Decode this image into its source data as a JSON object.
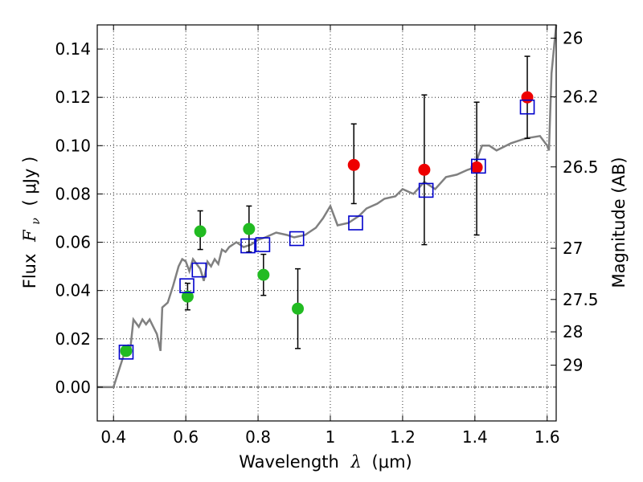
{
  "chart_data": {
    "type": "scatter",
    "xlabel": {
      "prefix": "Wavelength",
      "var": "λ",
      "unit": "(μm)"
    },
    "ylabel": {
      "prefix": "Flux",
      "var": "F",
      "sub": "ν",
      "unit": "( μJy )"
    },
    "y2label": "Magnitude (AB)",
    "xlim": [
      0.355,
      1.625
    ],
    "ylim": [
      -0.014,
      0.15
    ],
    "grid": true,
    "x_ticks": [
      {
        "value": 0.4,
        "label": "0.4"
      },
      {
        "value": 0.6,
        "label": "0.6"
      },
      {
        "value": 0.8,
        "label": "0.8"
      },
      {
        "value": 1.0,
        "label": "1"
      },
      {
        "value": 1.2,
        "label": "1.2"
      },
      {
        "value": 1.4,
        "label": "1.4"
      },
      {
        "value": 1.6,
        "label": "1.6"
      }
    ],
    "y_ticks": [
      {
        "value": 0.0,
        "label": "0.00"
      },
      {
        "value": 0.02,
        "label": "0.02"
      },
      {
        "value": 0.04,
        "label": "0.04"
      },
      {
        "value": 0.06,
        "label": "0.06"
      },
      {
        "value": 0.08,
        "label": "0.08"
      },
      {
        "value": 0.1,
        "label": "0.10"
      },
      {
        "value": 0.12,
        "label": "0.12"
      },
      {
        "value": 0.14,
        "label": "0.14"
      }
    ],
    "y2_ticks": [
      {
        "flux": 0.1445,
        "label": "26"
      },
      {
        "flux": 0.1202,
        "label": "26.2"
      },
      {
        "flux": 0.0912,
        "label": "26.5"
      },
      {
        "flux": 0.0575,
        "label": "27"
      },
      {
        "flux": 0.0363,
        "label": "27.5"
      },
      {
        "flux": 0.0229,
        "label": "28"
      },
      {
        "flux": 0.0091,
        "label": "29"
      }
    ],
    "colors": {
      "model": "#808080",
      "green_points": "#22bb22",
      "red_points": "#ee0000",
      "model_boxes": "#0000cc",
      "errorbars": "#000000"
    },
    "model_spectrum": [
      [
        0.355,
        0.0
      ],
      [
        0.4,
        0.0
      ],
      [
        0.43,
        0.014
      ],
      [
        0.44,
        0.017
      ],
      [
        0.446,
        0.015
      ],
      [
        0.455,
        0.028
      ],
      [
        0.47,
        0.025
      ],
      [
        0.48,
        0.028
      ],
      [
        0.49,
        0.026
      ],
      [
        0.5,
        0.028
      ],
      [
        0.51,
        0.025
      ],
      [
        0.52,
        0.022
      ],
      [
        0.53,
        0.015
      ],
      [
        0.535,
        0.033
      ],
      [
        0.55,
        0.035
      ],
      [
        0.565,
        0.042
      ],
      [
        0.58,
        0.05
      ],
      [
        0.59,
        0.053
      ],
      [
        0.6,
        0.052
      ],
      [
        0.61,
        0.048
      ],
      [
        0.62,
        0.053
      ],
      [
        0.63,
        0.051
      ],
      [
        0.64,
        0.049
      ],
      [
        0.65,
        0.044
      ],
      [
        0.66,
        0.052
      ],
      [
        0.67,
        0.05
      ],
      [
        0.68,
        0.053
      ],
      [
        0.69,
        0.051
      ],
      [
        0.7,
        0.057
      ],
      [
        0.71,
        0.056
      ],
      [
        0.72,
        0.058
      ],
      [
        0.74,
        0.06
      ],
      [
        0.76,
        0.058
      ],
      [
        0.78,
        0.059
      ],
      [
        0.8,
        0.061
      ],
      [
        0.82,
        0.062
      ],
      [
        0.85,
        0.064
      ],
      [
        0.88,
        0.063
      ],
      [
        0.9,
        0.062
      ],
      [
        0.93,
        0.063
      ],
      [
        0.96,
        0.066
      ],
      [
        0.98,
        0.07
      ],
      [
        1.0,
        0.075
      ],
      [
        1.02,
        0.067
      ],
      [
        1.05,
        0.068
      ],
      [
        1.08,
        0.071
      ],
      [
        1.1,
        0.074
      ],
      [
        1.13,
        0.076
      ],
      [
        1.15,
        0.078
      ],
      [
        1.18,
        0.079
      ],
      [
        1.2,
        0.082
      ],
      [
        1.23,
        0.08
      ],
      [
        1.26,
        0.085
      ],
      [
        1.29,
        0.082
      ],
      [
        1.32,
        0.087
      ],
      [
        1.35,
        0.088
      ],
      [
        1.38,
        0.09
      ],
      [
        1.4,
        0.091
      ],
      [
        1.41,
        0.096
      ],
      [
        1.42,
        0.1
      ],
      [
        1.44,
        0.1
      ],
      [
        1.46,
        0.098
      ],
      [
        1.5,
        0.101
      ],
      [
        1.54,
        0.103
      ],
      [
        1.58,
        0.104
      ],
      [
        1.6,
        0.1
      ],
      [
        1.605,
        0.098
      ],
      [
        1.612,
        0.13
      ],
      [
        1.625,
        0.15
      ]
    ],
    "green_points": [
      {
        "x": 0.435,
        "y": 0.015,
        "err": null
      },
      {
        "x": 0.605,
        "y": 0.0375,
        "err": [
          0.032,
          0.043
        ]
      },
      {
        "x": 0.64,
        "y": 0.0645,
        "err": [
          0.057,
          0.073
        ]
      },
      {
        "x": 0.775,
        "y": 0.0655,
        "err": [
          0.056,
          0.075
        ]
      },
      {
        "x": 0.815,
        "y": 0.0465,
        "err": [
          0.038,
          0.055
        ]
      },
      {
        "x": 0.91,
        "y": 0.0325,
        "err": [
          0.016,
          0.049
        ]
      }
    ],
    "red_points": [
      {
        "x": 1.065,
        "y": 0.092,
        "err": [
          0.076,
          0.109
        ]
      },
      {
        "x": 1.26,
        "y": 0.09,
        "err": [
          0.059,
          0.121
        ]
      },
      {
        "x": 1.405,
        "y": 0.091,
        "err": [
          0.063,
          0.118
        ]
      },
      {
        "x": 1.545,
        "y": 0.12,
        "err": [
          0.103,
          0.137
        ]
      }
    ],
    "model_boxes": [
      {
        "x": 0.435,
        "y": 0.0145
      },
      {
        "x": 0.603,
        "y": 0.042
      },
      {
        "x": 0.637,
        "y": 0.0485
      },
      {
        "x": 0.772,
        "y": 0.0585
      },
      {
        "x": 0.813,
        "y": 0.059
      },
      {
        "x": 0.907,
        "y": 0.0615
      },
      {
        "x": 1.07,
        "y": 0.068
      },
      {
        "x": 1.265,
        "y": 0.0815
      },
      {
        "x": 1.41,
        "y": 0.0915
      },
      {
        "x": 1.545,
        "y": 0.116
      }
    ]
  }
}
